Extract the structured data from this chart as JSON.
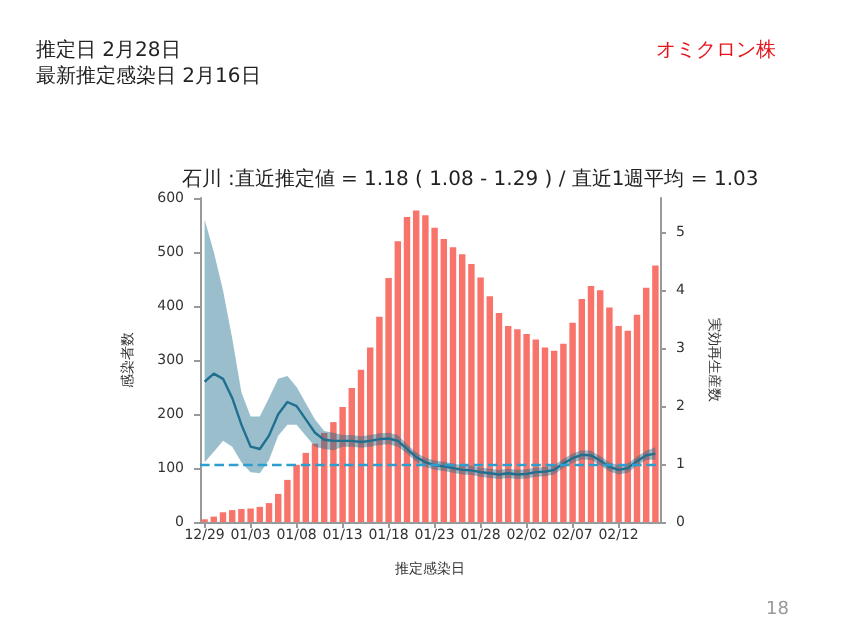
{
  "chart_data": {
    "type": "bar",
    "title": "石川 :直近推定値 = 1.18 ( 1.08 - 1.29 ) / 直近1週平均 = 1.03",
    "xlabel": "推定感染日",
    "ylabel": "感染者数",
    "y2label": "実効再生産数",
    "annotations": [
      "推定日  2月28日",
      "最新推定感染日  2月16日",
      "オミクロン株",
      "18"
    ],
    "categories": [
      "12/29",
      null,
      null,
      null,
      null,
      "01/03",
      null,
      null,
      null,
      null,
      "01/08",
      null,
      null,
      null,
      null,
      "01/13",
      null,
      null,
      null,
      null,
      "01/18",
      null,
      null,
      null,
      null,
      "01/23",
      null,
      null,
      null,
      null,
      "01/28",
      null,
      null,
      null,
      null,
      "02/02",
      null,
      null,
      null,
      null,
      "02/07",
      null,
      null,
      null,
      null,
      "02/12",
      null,
      null,
      null,
      null
    ],
    "series": [
      {
        "color": "#f8736a",
        "values": [
          5,
          10,
          18,
          22,
          24,
          25,
          28,
          35,
          52,
          78,
          106,
          128,
          145,
          165,
          185,
          213,
          248,
          282,
          323,
          380,
          452,
          520,
          565,
          577,
          568,
          545,
          524,
          509,
          496,
          478,
          453,
          418,
          387,
          363,
          357,
          348,
          338,
          323,
          317,
          330,
          369,
          413,
          437,
          429,
          397,
          363,
          354,
          384,
          434,
          475
        ]
      },
      {
        "type": "line",
        "axis": "y2",
        "color": "#1f6f8f",
        "values": [
          2.42,
          2.56,
          2.47,
          2.14,
          1.68,
          1.3,
          1.26,
          1.49,
          1.86,
          2.07,
          2.0,
          1.77,
          1.54,
          1.42,
          1.4,
          1.4,
          1.4,
          1.38,
          1.4,
          1.43,
          1.44,
          1.4,
          1.26,
          1.12,
          1.03,
          0.98,
          0.96,
          0.93,
          0.9,
          0.89,
          0.86,
          0.84,
          0.82,
          0.84,
          0.82,
          0.83,
          0.86,
          0.87,
          0.9,
          1.01,
          1.1,
          1.16,
          1.15,
          1.06,
          0.95,
          0.9,
          0.93,
          1.05,
          1.15,
          1.18
        ],
        "lower": [
          1.03,
          1.21,
          1.4,
          1.3,
          1.03,
          0.86,
          0.84,
          1.07,
          1.49,
          1.68,
          1.68,
          1.49,
          1.3,
          1.26,
          1.24,
          1.3,
          1.3,
          1.28,
          1.3,
          1.33,
          1.34,
          1.3,
          1.18,
          1.04,
          0.95,
          0.9,
          0.88,
          0.85,
          0.82,
          0.81,
          0.78,
          0.76,
          0.74,
          0.76,
          0.74,
          0.75,
          0.78,
          0.79,
          0.82,
          0.93,
          1.02,
          1.08,
          1.07,
          0.98,
          0.87,
          0.82,
          0.85,
          0.97,
          1.07,
          1.08
        ],
        "upper": [
          5.22,
          4.66,
          4.0,
          3.17,
          2.24,
          1.82,
          1.82,
          2.14,
          2.47,
          2.52,
          2.33,
          2.05,
          1.77,
          1.57,
          1.54,
          1.5,
          1.5,
          1.48,
          1.5,
          1.53,
          1.54,
          1.5,
          1.34,
          1.2,
          1.11,
          1.06,
          1.04,
          1.01,
          0.98,
          0.97,
          0.94,
          0.92,
          0.9,
          0.92,
          0.9,
          0.91,
          0.94,
          0.95,
          0.98,
          1.09,
          1.18,
          1.24,
          1.23,
          1.14,
          1.03,
          0.98,
          1.01,
          1.13,
          1.23,
          1.29
        ]
      }
    ],
    "ylim": [
      0,
      600
    ],
    "yticks": [
      0,
      100,
      200,
      300,
      400,
      500,
      600
    ],
    "y2lim": [
      0,
      5.59
    ],
    "y2ticks": [
      0,
      1,
      2,
      3,
      4,
      5
    ],
    "ref_lines": [
      {
        "axis": "y2",
        "value": 1,
        "color": "#2a9fd0",
        "line_style": "dashed"
      }
    ],
    "grid": false
  }
}
